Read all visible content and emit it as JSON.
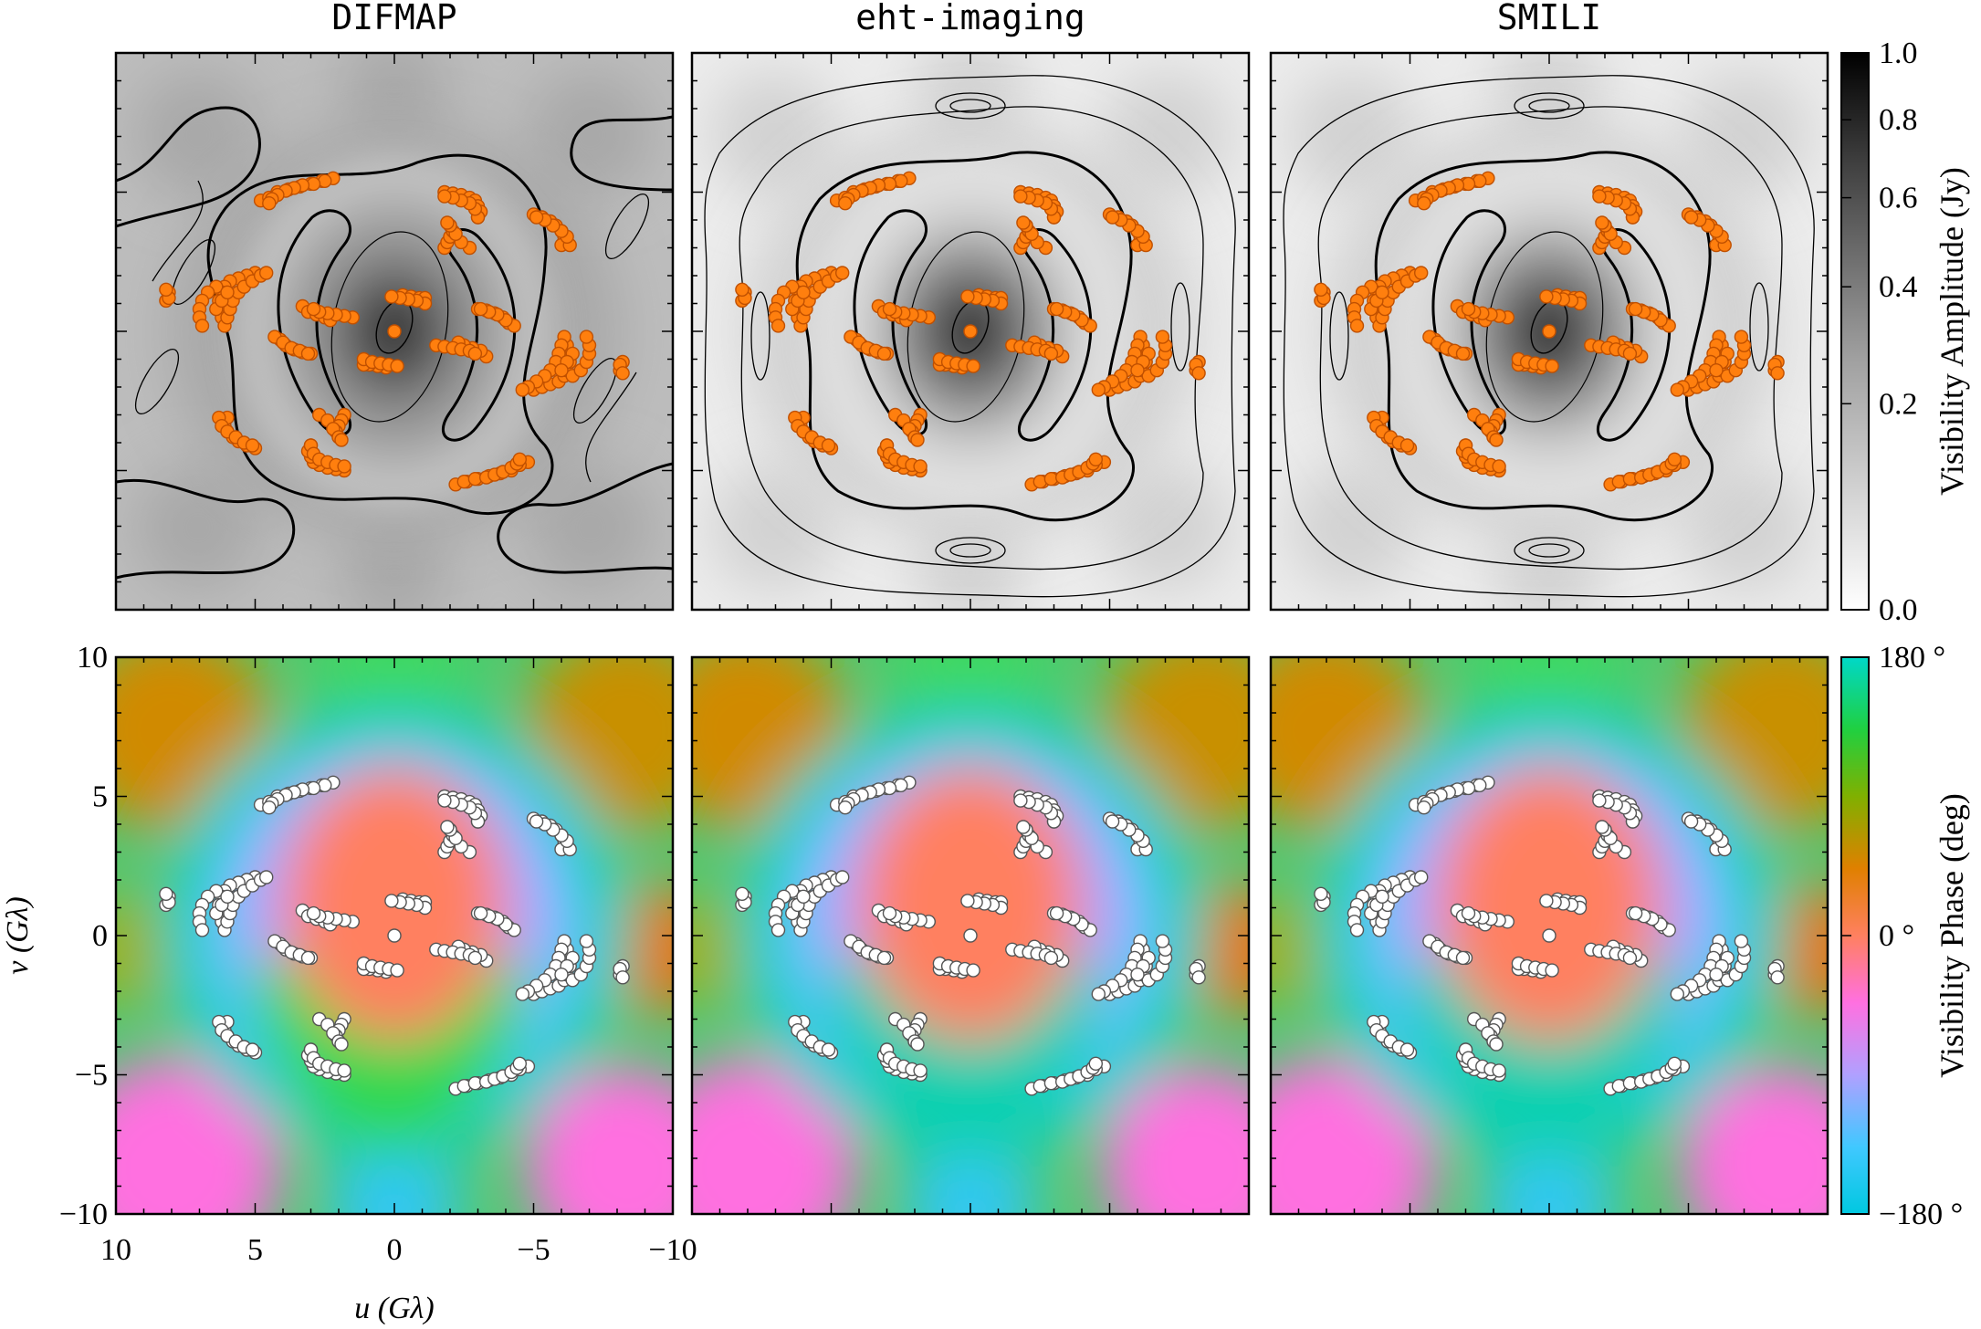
{
  "panel_titles": [
    "DIFMAP",
    "eht-imaging",
    "SMILI"
  ],
  "axes": {
    "xlabel": "u (Gλ)",
    "ylabel": "v (Gλ)",
    "x_ticks": [
      "10",
      "5",
      "0",
      "−5",
      "−10"
    ],
    "y_ticks": [
      "10",
      "5",
      "0",
      "−5",
      "−10"
    ]
  },
  "colorbars": {
    "amplitude": {
      "label": "Visibility Amplitude (Jy)",
      "ticks": [
        "1.0",
        "0.8",
        "0.6",
        "0.4",
        "0.2",
        "0.0"
      ]
    },
    "phase": {
      "label": "Visibility Phase (deg)",
      "ticks": [
        "180 °",
        "0 °",
        "−180 °"
      ]
    }
  },
  "colors": {
    "amp_point": "#ff7f0e",
    "phase_point": "#ffffff",
    "phase_stops": [
      "#00c8e0",
      "#20d8c0",
      "#30e060",
      "#a0b000",
      "#e08000",
      "#ff8060",
      "#ff70b0",
      "#e070ff",
      "#b0a0ff",
      "#40c8ff",
      "#00c8e0"
    ]
  },
  "chart_data": {
    "type": "scatter",
    "description_of_panels": "uv-coverage points over visibility amplitude (top) and phase (bottom) maps",
    "xlim": [
      10,
      -10
    ],
    "ylim": [
      -10,
      10
    ],
    "panels": [
      {
        "title": "DIFMAP",
        "row": "amplitude"
      },
      {
        "title": "eht-imaging",
        "row": "amplitude"
      },
      {
        "title": "SMILI",
        "row": "amplitude"
      },
      {
        "title": "",
        "row": "phase"
      },
      {
        "title": "",
        "row": "phase"
      },
      {
        "title": "",
        "row": "phase"
      }
    ],
    "uv_tracks": [
      {
        "points": [
          [
            4.8,
            4.7
          ],
          [
            4.5,
            4.8
          ],
          [
            4.2,
            5.0
          ],
          [
            3.8,
            5.1
          ],
          [
            3.4,
            5.2
          ],
          [
            3.0,
            5.3
          ],
          [
            2.6,
            5.4
          ],
          [
            2.2,
            5.5
          ]
        ]
      },
      {
        "points": [
          [
            -1.8,
            5.0
          ],
          [
            -2.1,
            4.95
          ],
          [
            -2.4,
            4.9
          ],
          [
            -2.7,
            4.8
          ],
          [
            -2.9,
            4.7
          ],
          [
            -3.0,
            4.5
          ],
          [
            -3.1,
            4.3
          ],
          [
            -3.0,
            4.1
          ]
        ]
      },
      {
        "points": [
          [
            -5.0,
            4.2
          ],
          [
            -5.3,
            4.1
          ],
          [
            -5.6,
            3.95
          ],
          [
            -5.8,
            3.8
          ],
          [
            -6.0,
            3.6
          ],
          [
            -6.1,
            3.4
          ],
          [
            -6.0,
            3.1
          ]
        ]
      },
      {
        "points": [
          [
            -1.8,
            3.0
          ],
          [
            -1.9,
            3.2
          ],
          [
            -2.0,
            3.4
          ],
          [
            -2.1,
            3.6
          ],
          [
            -2.0,
            3.8
          ]
        ]
      },
      {
        "points": [
          [
            5.0,
            2.1
          ],
          [
            5.3,
            2.0
          ],
          [
            5.6,
            1.9
          ],
          [
            5.9,
            1.8
          ],
          [
            6.1,
            1.6
          ],
          [
            6.2,
            1.4
          ],
          [
            6.3,
            1.1
          ],
          [
            6.3,
            0.8
          ],
          [
            6.2,
            0.5
          ]
        ]
      },
      {
        "points": [
          [
            6.4,
            1.6
          ],
          [
            6.7,
            1.4
          ],
          [
            6.9,
            1.1
          ],
          [
            7.0,
            0.8
          ],
          [
            7.0,
            0.5
          ],
          [
            6.9,
            0.2
          ]
        ]
      },
      {
        "points": [
          [
            8.1,
            1.4
          ],
          [
            8.2,
            1.1
          ]
        ]
      },
      {
        "points": [
          [
            -0.3,
            1.3
          ],
          [
            -0.6,
            1.25
          ],
          [
            -0.9,
            1.2
          ],
          [
            -1.1,
            1.2
          ]
        ]
      },
      {
        "points": [
          [
            3.3,
            0.9
          ],
          [
            3.1,
            0.7
          ],
          [
            2.8,
            0.6
          ],
          [
            2.5,
            0.5
          ],
          [
            2.3,
            0.4
          ]
        ]
      },
      {
        "points": [
          [
            -3.0,
            0.8
          ],
          [
            -3.3,
            0.75
          ],
          [
            -3.6,
            0.65
          ],
          [
            -3.9,
            0.5
          ],
          [
            -4.1,
            0.3
          ]
        ]
      },
      {
        "points": [
          [
            4.3,
            -0.2
          ],
          [
            4.0,
            -0.4
          ],
          [
            3.7,
            -0.6
          ],
          [
            3.4,
            -0.7
          ],
          [
            3.1,
            -0.8
          ]
        ]
      },
      {
        "points": [
          [
            -1.5,
            -0.5
          ],
          [
            -1.8,
            -0.55
          ],
          [
            -2.1,
            -0.6
          ],
          [
            -2.4,
            -0.65
          ],
          [
            -2.7,
            -0.7
          ],
          [
            -2.9,
            -0.8
          ]
        ]
      },
      {
        "points": [
          [
            -6.1,
            -0.2
          ],
          [
            -6.0,
            -0.5
          ],
          [
            -5.9,
            -0.8
          ],
          [
            -5.8,
            -1.1
          ],
          [
            -5.6,
            -1.4
          ],
          [
            -5.4,
            -1.6
          ],
          [
            -5.1,
            -1.8
          ],
          [
            -4.8,
            -2.0
          ],
          [
            -4.6,
            -2.1
          ]
        ]
      },
      {
        "points": [
          [
            -6.4,
            -0.8
          ],
          [
            -6.2,
            -1.1
          ],
          [
            -6.0,
            -1.4
          ]
        ]
      },
      {
        "points": [
          [
            -8.1,
            -1.2
          ],
          [
            -8.2,
            -1.5
          ]
        ]
      },
      {
        "points": [
          [
            1.1,
            -1.0
          ],
          [
            0.8,
            -1.1
          ],
          [
            0.5,
            -1.15
          ],
          [
            0.2,
            -1.2
          ],
          [
            -0.1,
            -1.25
          ]
        ]
      },
      {
        "points": [
          [
            6.3,
            -3.1
          ],
          [
            6.2,
            -3.4
          ],
          [
            6.0,
            -3.6
          ],
          [
            5.7,
            -3.8
          ],
          [
            5.4,
            -4.0
          ],
          [
            5.1,
            -4.1
          ]
        ]
      },
      {
        "points": [
          [
            2.7,
            -3.0
          ],
          [
            2.4,
            -3.2
          ],
          [
            2.2,
            -3.5
          ],
          [
            2.0,
            -3.8
          ],
          [
            1.9,
            -3.9
          ]
        ]
      },
      {
        "points": [
          [
            3.0,
            -4.1
          ],
          [
            2.9,
            -4.4
          ],
          [
            2.7,
            -4.6
          ],
          [
            2.4,
            -4.7
          ],
          [
            2.1,
            -4.8
          ],
          [
            1.8,
            -4.85
          ]
        ]
      },
      {
        "points": [
          [
            -2.5,
            -5.4
          ],
          [
            -2.9,
            -5.3
          ],
          [
            -3.3,
            -5.25
          ],
          [
            -3.6,
            -5.15
          ],
          [
            -3.9,
            -5.05
          ],
          [
            -4.2,
            -4.9
          ],
          [
            -4.4,
            -4.75
          ],
          [
            -4.5,
            -4.6
          ]
        ]
      },
      {
        "points": [
          [
            0.0,
            0.0
          ]
        ]
      }
    ]
  }
}
